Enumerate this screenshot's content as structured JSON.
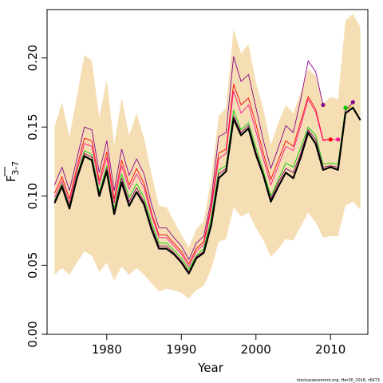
{
  "chart_data": {
    "type": "line",
    "xlabel": "Year",
    "ylabel_main": "F",
    "ylabel_sub": "3-7",
    "xlim": [
      1972,
      2015
    ],
    "ylim": [
      0,
      0.235
    ],
    "xticks": [
      1980,
      1990,
      2000,
      2010
    ],
    "yticks": [
      0.0,
      0.05,
      0.1,
      0.15,
      0.2
    ],
    "ytick_labels": [
      "0.00",
      "0.05",
      "0.10",
      "0.15",
      "0.20"
    ],
    "xtick_labels": [
      "1980",
      "1990",
      "2000",
      "2010"
    ],
    "grid": false,
    "footnote": "stockassessment.org, Her30_2016, r6673",
    "years": [
      1973,
      1974,
      1975,
      1976,
      1977,
      1978,
      1979,
      1980,
      1981,
      1982,
      1983,
      1984,
      1985,
      1986,
      1987,
      1988,
      1989,
      1990,
      1991,
      1992,
      1993,
      1994,
      1995,
      1996,
      1997,
      1998,
      1999,
      2000,
      2001,
      2002,
      2003,
      2004,
      2005,
      2006,
      2007,
      2008,
      2009,
      2010,
      2011,
      2012,
      2013,
      2014
    ],
    "band_upper": [
      0.15,
      0.168,
      0.143,
      0.172,
      0.202,
      0.198,
      0.157,
      0.184,
      0.137,
      0.171,
      0.144,
      0.16,
      0.142,
      0.116,
      0.093,
      0.092,
      0.082,
      0.072,
      0.063,
      0.076,
      0.082,
      0.112,
      0.158,
      0.164,
      0.221,
      0.203,
      0.21,
      0.182,
      0.163,
      0.137,
      0.153,
      0.166,
      0.16,
      0.175,
      0.192,
      0.187,
      0.167,
      0.172,
      0.17,
      0.227,
      0.232,
      0.222
    ],
    "band_lower": [
      0.043,
      0.048,
      0.043,
      0.052,
      0.06,
      0.057,
      0.045,
      0.052,
      0.039,
      0.049,
      0.043,
      0.048,
      0.043,
      0.037,
      0.031,
      0.033,
      0.032,
      0.03,
      0.026,
      0.032,
      0.035,
      0.047,
      0.067,
      0.069,
      0.092,
      0.085,
      0.088,
      0.077,
      0.068,
      0.056,
      0.062,
      0.069,
      0.068,
      0.078,
      0.088,
      0.081,
      0.07,
      0.071,
      0.071,
      0.093,
      0.096,
      0.09
    ],
    "series": [
      {
        "color": "#8b008b",
        "width": 0.9,
        "values": [
          0.108,
          0.121,
          0.104,
          0.127,
          0.15,
          0.148,
          0.117,
          0.14,
          0.104,
          0.134,
          0.115,
          0.127,
          0.116,
          0.094,
          0.077,
          0.077,
          0.07,
          0.064,
          0.054,
          0.066,
          0.071,
          0.097,
          0.143,
          0.146,
          0.201,
          0.183,
          0.188,
          0.164,
          0.14,
          0.12,
          0.135,
          0.151,
          0.146,
          0.17,
          0.198,
          0.19,
          0.166
        ],
        "endpoint": {
          "year": 2009,
          "value": 0.166
        }
      },
      {
        "color": "#ff0000",
        "width": 0.9,
        "values": [
          0.102,
          0.114,
          0.098,
          0.121,
          0.142,
          0.14,
          0.111,
          0.132,
          0.098,
          0.126,
          0.108,
          0.12,
          0.109,
          0.088,
          0.072,
          0.072,
          0.066,
          0.06,
          0.051,
          0.062,
          0.067,
          0.093,
          0.131,
          0.134,
          0.181,
          0.166,
          0.171,
          0.152,
          0.131,
          0.112,
          0.126,
          0.14,
          0.136,
          0.154,
          0.172,
          0.163,
          0.141,
          0.141
        ],
        "endpoint": {
          "year": 2010,
          "value": 0.141
        }
      },
      {
        "color": "#ff1493",
        "width": 0.9,
        "values": [
          0.099,
          0.111,
          0.095,
          0.118,
          0.138,
          0.136,
          0.108,
          0.128,
          0.095,
          0.122,
          0.105,
          0.116,
          0.106,
          0.086,
          0.07,
          0.07,
          0.064,
          0.058,
          0.049,
          0.06,
          0.065,
          0.09,
          0.127,
          0.131,
          0.176,
          0.16,
          0.166,
          0.147,
          0.127,
          0.108,
          0.122,
          0.136,
          0.133,
          0.151,
          0.17,
          0.161,
          0.14,
          0.141,
          0.141
        ],
        "endpoint": {
          "year": 2011,
          "value": 0.141
        }
      },
      {
        "color": "#00cd00",
        "width": 0.9,
        "values": [
          0.097,
          0.109,
          0.093,
          0.115,
          0.133,
          0.13,
          0.103,
          0.122,
          0.091,
          0.116,
          0.099,
          0.109,
          0.099,
          0.081,
          0.066,
          0.066,
          0.061,
          0.055,
          0.047,
          0.057,
          0.062,
          0.084,
          0.119,
          0.122,
          0.162,
          0.148,
          0.153,
          0.135,
          0.118,
          0.1,
          0.112,
          0.124,
          0.121,
          0.135,
          0.15,
          0.144,
          0.123,
          0.124,
          0.123,
          0.164
        ],
        "endpoint": {
          "year": 2012,
          "value": 0.164
        }
      },
      {
        "color": "#d9c200",
        "width": 1.0,
        "values": [
          0.096,
          0.108,
          0.092,
          0.114,
          0.131,
          0.128,
          0.101,
          0.12,
          0.089,
          0.113,
          0.096,
          0.106,
          0.096,
          0.078,
          0.064,
          0.064,
          0.059,
          0.053,
          0.045,
          0.056,
          0.06,
          0.081,
          0.116,
          0.12,
          0.158,
          0.146,
          0.151,
          0.132,
          0.116,
          0.098,
          0.11,
          0.12,
          0.117,
          0.131,
          0.148,
          0.141,
          0.121,
          0.122,
          0.121,
          0.162,
          0.166
        ]
      },
      {
        "color": "#8b008b",
        "width": 0.9,
        "values": [
          0.096,
          0.108,
          0.092,
          0.114,
          0.131,
          0.128,
          0.101,
          0.12,
          0.089,
          0.113,
          0.096,
          0.106,
          0.096,
          0.078,
          0.064,
          0.064,
          0.059,
          0.053,
          0.045,
          0.056,
          0.06,
          0.081,
          0.116,
          0.12,
          0.158,
          0.146,
          0.151,
          0.132,
          0.116,
          0.098,
          0.11,
          0.12,
          0.117,
          0.131,
          0.148,
          0.141,
          0.121,
          0.122,
          0.121,
          0.162,
          0.168
        ],
        "endpoint": {
          "year": 2013,
          "value": 0.168
        }
      },
      {
        "color": "#000000",
        "width": 2.2,
        "values": [
          0.095,
          0.107,
          0.091,
          0.113,
          0.129,
          0.126,
          0.1,
          0.118,
          0.087,
          0.11,
          0.093,
          0.103,
          0.094,
          0.076,
          0.062,
          0.062,
          0.058,
          0.052,
          0.044,
          0.055,
          0.059,
          0.079,
          0.113,
          0.118,
          0.156,
          0.144,
          0.149,
          0.13,
          0.115,
          0.096,
          0.107,
          0.117,
          0.113,
          0.128,
          0.146,
          0.138,
          0.119,
          0.121,
          0.119,
          0.16,
          0.164,
          0.155
        ]
      }
    ]
  }
}
